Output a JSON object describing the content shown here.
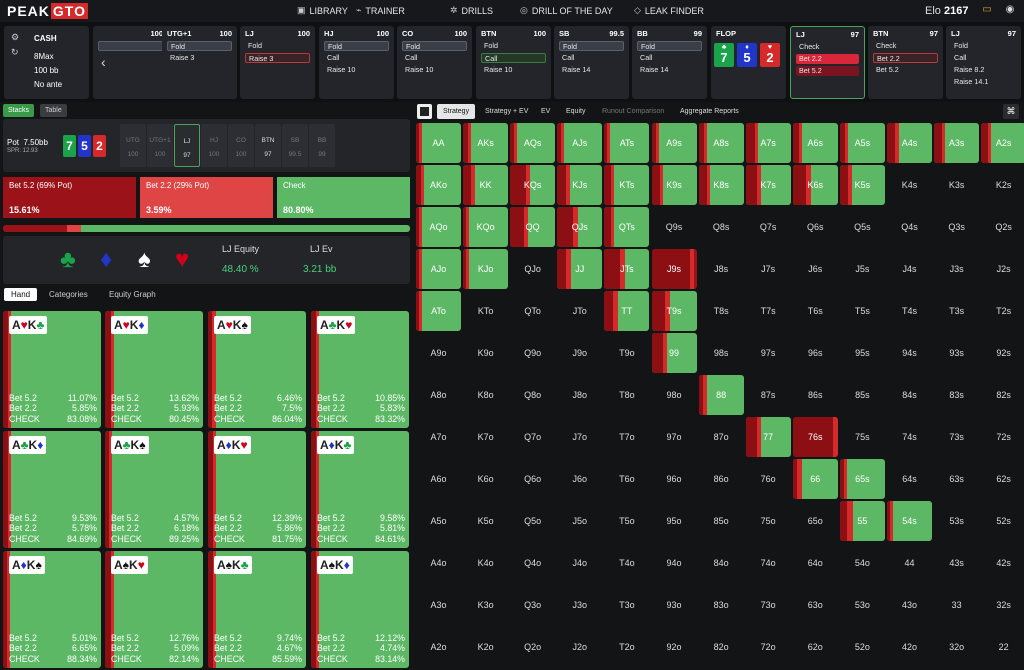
{
  "app": {
    "logo_main": "PEAK",
    "logo_accent": "GTO",
    "elo_label": "Elo",
    "elo_value": "2167"
  },
  "nav": [
    {
      "icon": "▣",
      "label": "LIBRARY"
    },
    {
      "icon": "⌁",
      "label": "TRAINER"
    },
    {
      "icon": "✲",
      "label": "DRILLS"
    },
    {
      "icon": "◎",
      "label": "DRILL OF THE DAY"
    },
    {
      "icon": "◇",
      "label": "LEAK FINDER"
    }
  ],
  "game": {
    "type": "CASH",
    "table": "8Max",
    "stack": "100 bb",
    "ante": "No ante"
  },
  "positions": [
    {
      "name": "",
      "stack": "100",
      "actions": [
        {
          "t": "",
          "c": "sel"
        },
        {
          "t": "",
          "c": ""
        }
      ]
    },
    {
      "name": "UTG+1",
      "stack": "100",
      "actions": [
        {
          "t": "Fold",
          "c": "sel"
        },
        {
          "t": "Raise 3",
          "c": ""
        }
      ]
    },
    {
      "name": "LJ",
      "stack": "100",
      "actions": [
        {
          "t": "Fold",
          "c": ""
        },
        {
          "t": "Raise 3",
          "c": "hl"
        }
      ]
    },
    {
      "name": "HJ",
      "stack": "100",
      "actions": [
        {
          "t": "Fold",
          "c": "sel"
        },
        {
          "t": "Call",
          "c": ""
        },
        {
          "t": "Raise 10",
          "c": ""
        }
      ]
    },
    {
      "name": "CO",
      "stack": "100",
      "actions": [
        {
          "t": "Fold",
          "c": "sel"
        },
        {
          "t": "Call",
          "c": ""
        },
        {
          "t": "Raise 10",
          "c": ""
        }
      ]
    },
    {
      "name": "BTN",
      "stack": "100",
      "actions": [
        {
          "t": "Fold",
          "c": ""
        },
        {
          "t": "Call",
          "c": "hls"
        },
        {
          "t": "Raise 10",
          "c": ""
        }
      ]
    },
    {
      "name": "SB",
      "stack": "99.5",
      "actions": [
        {
          "t": "Fold",
          "c": "sel"
        },
        {
          "t": "Call",
          "c": ""
        },
        {
          "t": "Raise 14",
          "c": ""
        }
      ]
    },
    {
      "name": "BB",
      "stack": "99",
      "actions": [
        {
          "t": "Fold",
          "c": "sel"
        },
        {
          "t": "Call",
          "c": ""
        },
        {
          "t": "Raise 14",
          "c": ""
        }
      ]
    }
  ],
  "flop": {
    "label": "FLOP",
    "cards": [
      {
        "rank": "7",
        "suit": "♣",
        "color": "#1aa34a"
      },
      {
        "rank": "5",
        "suit": "♦",
        "color": "#2136c8"
      },
      {
        "rank": "2",
        "suit": "♥",
        "color": "#d62a2a"
      }
    ]
  },
  "postflop": [
    {
      "name": "LJ",
      "stack": "97",
      "actions": [
        {
          "t": "Check",
          "c": ""
        },
        {
          "t": "Bet 2.2",
          "c": "red"
        },
        {
          "t": "Bet 5.2",
          "c": "dkred"
        }
      ]
    },
    {
      "name": "BTN",
      "stack": "97",
      "actions": [
        {
          "t": "Check",
          "c": ""
        },
        {
          "t": "Bet 2.2",
          "c": "hl"
        },
        {
          "t": "Bet 5.2",
          "c": ""
        }
      ]
    },
    {
      "name": "LJ",
      "stack": "97",
      "actions": [
        {
          "t": "Fold",
          "c": ""
        },
        {
          "t": "Call",
          "c": ""
        },
        {
          "t": "Raise 8.2",
          "c": ""
        },
        {
          "t": "Raise 14.1",
          "c": ""
        }
      ]
    }
  ],
  "left": {
    "stacks_btn": "Stacks",
    "table_btn": "Table",
    "pot_label": "Pot",
    "pot_value": "7.50bb",
    "spr": "SPR: 12.93",
    "seats": [
      {
        "n": "UTG",
        "v": "100"
      },
      {
        "n": "UTG+1",
        "v": "100"
      },
      {
        "n": "LJ",
        "v": "97"
      },
      {
        "n": "HJ",
        "v": "100"
      },
      {
        "n": "CO",
        "v": "100"
      },
      {
        "n": "BTN",
        "v": "97"
      },
      {
        "n": "SB",
        "v": "99.5"
      },
      {
        "n": "BB",
        "v": "99"
      }
    ],
    "strategies": [
      {
        "label": "Bet 5.2 (69% Pot)",
        "pct": "15.61%",
        "color": "#9b1218"
      },
      {
        "label": "Bet 2.2 (29% Pot)",
        "pct": "3.59%",
        "color": "#e04545"
      },
      {
        "label": "Check",
        "pct": "80.80%",
        "color": "#5cb865"
      }
    ],
    "freq": [
      0.1561,
      0.0359,
      0.808
    ],
    "equity_label": "LJ Equity",
    "equity_value": "48.40 %",
    "ev_label": "LJ Ev",
    "ev_value": "3.21 bb",
    "suits": [
      {
        "s": "♣",
        "c": "#1aa34a"
      },
      {
        "s": "♦",
        "c": "#2136c8"
      },
      {
        "s": "♠",
        "c": "#ffffff"
      },
      {
        "s": "♥",
        "c": "#d0021b"
      }
    ],
    "tabs": [
      "Hand",
      "Categories",
      "Equity Graph"
    ]
  },
  "hands": [
    {
      "c1": "A",
      "s1": "♥",
      "k1": "r",
      "c2": "K",
      "s2": "♣",
      "k2": "g",
      "b52": "11.07%",
      "b22": "5.85%",
      "chk": "83.08%",
      "f": [
        0.11,
        0.06
      ]
    },
    {
      "c1": "A",
      "s1": "♥",
      "k1": "r",
      "c2": "K",
      "s2": "♦",
      "k2": "b",
      "b52": "13.62%",
      "b22": "5.93%",
      "chk": "80.45%",
      "f": [
        0.14,
        0.06
      ]
    },
    {
      "c1": "A",
      "s1": "♥",
      "k1": "r",
      "c2": "K",
      "s2": "♠",
      "k2": "k",
      "b52": "6.46%",
      "b22": "7.5%",
      "chk": "86.04%",
      "f": [
        0.06,
        0.08
      ]
    },
    {
      "c1": "A",
      "s1": "♣",
      "k1": "g",
      "c2": "K",
      "s2": "♥",
      "k2": "r",
      "b52": "10.85%",
      "b22": "5.83%",
      "chk": "83.32%",
      "f": [
        0.11,
        0.06
      ]
    },
    {
      "c1": "A",
      "s1": "♣",
      "k1": "g",
      "c2": "K",
      "s2": "♦",
      "k2": "b",
      "b52": "9.53%",
      "b22": "5.78%",
      "chk": "84.69%",
      "f": [
        0.1,
        0.06
      ]
    },
    {
      "c1": "A",
      "s1": "♣",
      "k1": "g",
      "c2": "K",
      "s2": "♠",
      "k2": "k",
      "b52": "4.57%",
      "b22": "6.18%",
      "chk": "89.25%",
      "f": [
        0.05,
        0.06
      ]
    },
    {
      "c1": "A",
      "s1": "♦",
      "k1": "b",
      "c2": "K",
      "s2": "♥",
      "k2": "r",
      "b52": "12.39%",
      "b22": "5.86%",
      "chk": "81.75%",
      "f": [
        0.12,
        0.06
      ]
    },
    {
      "c1": "A",
      "s1": "♦",
      "k1": "b",
      "c2": "K",
      "s2": "♣",
      "k2": "g",
      "b52": "9.58%",
      "b22": "5.81%",
      "chk": "84.61%",
      "f": [
        0.1,
        0.06
      ]
    },
    {
      "c1": "A",
      "s1": "♦",
      "k1": "b",
      "c2": "K",
      "s2": "♠",
      "k2": "k",
      "b52": "5.01%",
      "b22": "6.65%",
      "chk": "88.34%",
      "f": [
        0.05,
        0.07
      ]
    },
    {
      "c1": "A",
      "s1": "♠",
      "k1": "k",
      "c2": "K",
      "s2": "♥",
      "k2": "r",
      "b52": "12.76%",
      "b22": "5.09%",
      "chk": "82.14%",
      "f": [
        0.13,
        0.05
      ]
    },
    {
      "c1": "A",
      "s1": "♠",
      "k1": "k",
      "c2": "K",
      "s2": "♣",
      "k2": "g",
      "b52": "9.74%",
      "b22": "4.67%",
      "chk": "85.59%",
      "f": [
        0.1,
        0.05
      ]
    },
    {
      "c1": "A",
      "s1": "♠",
      "k1": "k",
      "c2": "K",
      "s2": "♦",
      "k2": "b",
      "b52": "12.12%",
      "b22": "4.74%",
      "chk": "83.14%",
      "f": [
        0.12,
        0.05
      ]
    }
  ],
  "hand_labels": {
    "b52": "Bet 5.2",
    "b22": "Bet 2.2",
    "chk": "CHECK"
  },
  "right_tabs": [
    "Strategy",
    "Strategy + EV",
    "EV",
    "Equity",
    "Runout Comparison",
    "Aggregate Reports"
  ],
  "ranks": [
    "A",
    "K",
    "Q",
    "J",
    "T",
    "9",
    "8",
    "7",
    "6",
    "5",
    "4",
    "3",
    "2"
  ],
  "range_cells": {
    "AA": [
      0.05,
      0.05
    ],
    "AKs": [
      0.12,
      0.05
    ],
    "AQs": [
      0.08,
      0.04
    ],
    "AJs": [
      0.08,
      0.04
    ],
    "ATs": [
      0.05,
      0.03
    ],
    "A9s": [
      0.1,
      0.05
    ],
    "A8s": [
      0.12,
      0.05
    ],
    "A7s": [
      0.2,
      0.08
    ],
    "A6s": [
      0.14,
      0.06
    ],
    "A5s": [
      0.12,
      0.06
    ],
    "A4s": [
      0.18,
      0.08
    ],
    "A3s": [
      0.18,
      0.06
    ],
    "A2s": [
      0.15,
      0.07
    ],
    "AKo": [
      0.11,
      0.06
    ],
    "KK": [
      0.18,
      0.08
    ],
    "KQs": [
      0.35,
      0.1
    ],
    "KJs": [
      0.2,
      0.08
    ],
    "KTs": [
      0.15,
      0.05
    ],
    "K9s": [
      0.18,
      0.06
    ],
    "K8s": [
      0.18,
      0.08
    ],
    "K7s": [
      0.25,
      0.1
    ],
    "K6s": [
      0.3,
      0.1
    ],
    "K5s": [
      0.18,
      0.08
    ],
    "AQo": [
      0.05,
      0.02
    ],
    "KQo": [
      0.04,
      0.02
    ],
    "QQ": [
      0.3,
      0.1
    ],
    "QJs": [
      0.35,
      0.1
    ],
    "QTs": [
      0.15,
      0.05
    ],
    "AJo": [
      0.05,
      0.02
    ],
    "KJo": [
      0.05,
      0.02
    ],
    "JJ": [
      0.2,
      0.1
    ],
    "JTs": [
      0.35,
      0.1
    ],
    "J9s": [
      0.85,
      0.1
    ],
    "ATo": [
      0.03,
      0.02
    ],
    "TT": [
      0.2,
      0.1
    ],
    "T9s": [
      0.3,
      0.1
    ],
    "99": [
      0.25,
      0.1
    ],
    "88": [
      0.1,
      0.08
    ],
    "77": [
      0.25,
      0.1
    ],
    "76s": [
      0.9,
      0.1
    ],
    "66": [
      0.1,
      0.1
    ],
    "65s": [
      0.1,
      0.05
    ],
    "55": [
      0.15,
      0.15
    ],
    "54s": [
      0.05,
      0.02
    ]
  }
}
